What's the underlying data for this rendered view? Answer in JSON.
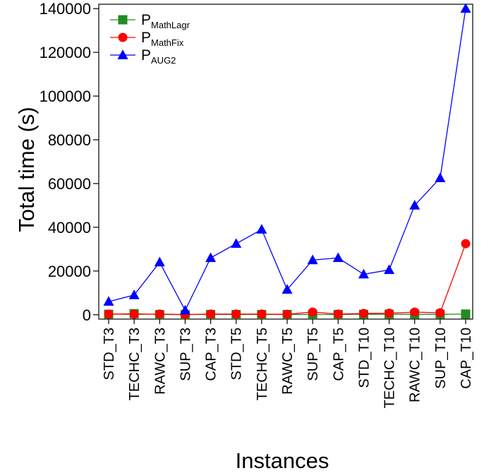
{
  "chart_data": {
    "type": "line",
    "xlabel": "Instances",
    "ylabel": "Total time (s)",
    "ylim": [
      -2000,
      142000
    ],
    "yticks": [
      0,
      20000,
      40000,
      60000,
      80000,
      100000,
      120000,
      140000
    ],
    "ytick_labels": [
      "0",
      "20000",
      "40000",
      "60000",
      "80000",
      "100000",
      "120000",
      "140000"
    ],
    "categories": [
      "STD_T3",
      "TECHC_T3",
      "RAWC_T3",
      "SUP_T3",
      "CAP_T3",
      "STD_T5",
      "TECHC_T5",
      "RAWC_T5",
      "SUP_T5",
      "CAP_T5",
      "STD_T10",
      "TECHC_T10",
      "RAWC_T10",
      "SUP_T10",
      "CAP_T10"
    ],
    "legend_position": "top-left",
    "series": [
      {
        "name": "P",
        "subscript": "MathLagr",
        "color": "#228B22",
        "marker": "square",
        "values": [
          200,
          500,
          100,
          50,
          100,
          100,
          100,
          100,
          100,
          100,
          200,
          200,
          200,
          200,
          300
        ]
      },
      {
        "name": "P",
        "subscript": "MathFix",
        "color": "#ff0000",
        "marker": "circle",
        "values": [
          300,
          200,
          300,
          100,
          300,
          300,
          300,
          200,
          1200,
          300,
          600,
          700,
          1200,
          900,
          32500
        ]
      },
      {
        "name": "P",
        "subscript": "AUG2",
        "color": "#0000ff",
        "marker": "triangle",
        "values": [
          6000,
          9000,
          24000,
          2000,
          26000,
          32500,
          39000,
          11500,
          25000,
          26000,
          18500,
          20500,
          50000,
          62500,
          140000
        ]
      }
    ]
  }
}
